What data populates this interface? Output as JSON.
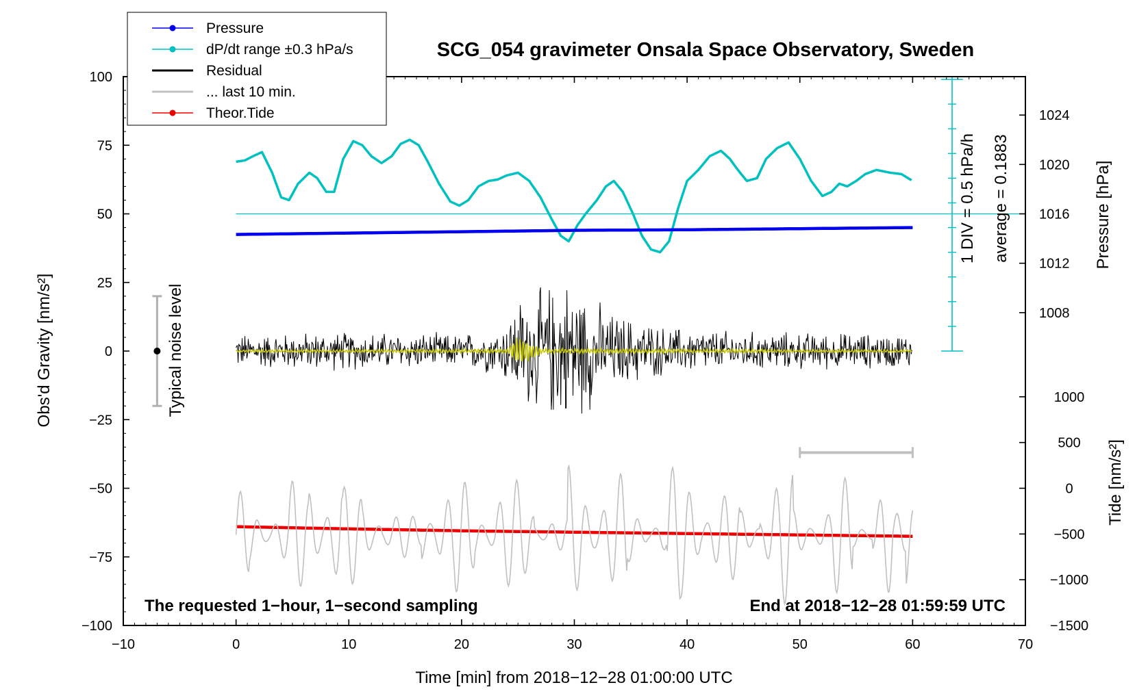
{
  "chart_data": {
    "type": "line",
    "title": "SCG_054 gravimeter Onsala Space Observatory, Sweden",
    "xlabel": "Time [min] from 2018−12−28 01:00:00 UTC",
    "ylabel_left": "Obs'd Gravity [nm/s²]",
    "ylabel_right_top": "Pressure [hPa]",
    "ylabel_right_bottom": "Tide [nm/s²]",
    "xlim": [
      -10,
      70
    ],
    "ylim_left": [
      -100,
      100
    ],
    "x_ticks": [
      "−10",
      "0",
      "10",
      "20",
      "30",
      "40",
      "50",
      "60",
      "70"
    ],
    "left_ticks": [
      "100",
      "75",
      "50",
      "25",
      "0",
      "−25",
      "−50",
      "−75",
      "−100"
    ],
    "pressure_ticks": [
      "1024",
      "1020",
      "1016",
      "1012",
      "1008"
    ],
    "tide_ticks": [
      "1000",
      "500",
      "0",
      "−500",
      "−1000",
      "−1500"
    ],
    "legend": [
      {
        "label": "Pressure",
        "color": "#0000ee",
        "marker": true
      },
      {
        "label": "dP/dt range ±0.3 hPa/s",
        "color": "#00c0c0",
        "marker": true
      },
      {
        "label": "Residual",
        "color": "#000000",
        "marker": false
      },
      {
        "label": "... last 10 min.",
        "color": "#c0c0c0",
        "marker": false
      },
      {
        "label": "Theor.Tide",
        "color": "#ee0000",
        "marker": true
      }
    ],
    "annotations": {
      "div_label": "1 DIV = 0.5 hPa/h",
      "average_label": "average = 0.1883",
      "noise_label": "Typical noise level",
      "bottom_left": "The requested 1−hour, 1−second sampling",
      "bottom_right": "End at 2018−12−28 01:59:59 UTC"
    },
    "series": [
      {
        "name": "Pressure",
        "color": "#0000ee",
        "unit": "left-axis",
        "x": [
          0,
          10,
          20,
          30,
          40,
          50,
          60
        ],
        "values": [
          42.5,
          43.0,
          43.5,
          44.0,
          44.2,
          44.6,
          45.0
        ]
      },
      {
        "name": "dP/dt",
        "color": "#00c0c0",
        "unit": "left-axis",
        "x": [
          0,
          0.8,
          1.5,
          2.3,
          3.2,
          4.0,
          4.7,
          5.5,
          6.5,
          7.2,
          8.0,
          8.7,
          9.5,
          10.4,
          11.2,
          12.0,
          12.9,
          13.8,
          14.6,
          15.4,
          16.2,
          17.0,
          18.0,
          19.0,
          19.8,
          20.6,
          21.5,
          22.4,
          23.2,
          24.0,
          25.0,
          26.0,
          27.0,
          28.0,
          28.8,
          29.5,
          30.3,
          31.0,
          32.0,
          32.8,
          33.5,
          34.3,
          35.2,
          36.0,
          36.8,
          37.6,
          38.4,
          39.2,
          40.0,
          41.0,
          42.0,
          43.0,
          43.8,
          44.5,
          45.3,
          46.2,
          47.0,
          48.0,
          49.0,
          50.0,
          51.0,
          52.0,
          52.8,
          53.5,
          54.2,
          55.0,
          55.8,
          56.8,
          58.0,
          59.0,
          60.0
        ],
        "values": [
          69,
          69.5,
          71,
          72.5,
          65,
          56,
          55,
          61,
          65,
          63,
          58,
          58,
          70,
          76.5,
          75,
          71,
          68.5,
          71,
          75.5,
          77,
          75,
          69,
          61,
          54.5,
          53,
          55,
          60,
          62,
          62.5,
          64,
          65,
          62,
          56,
          48,
          42,
          40,
          46,
          50,
          55,
          60,
          62,
          58,
          50,
          42,
          37,
          36,
          40,
          52,
          62,
          66,
          71,
          73,
          70,
          66,
          62,
          63,
          70,
          74,
          76,
          70,
          62,
          56.5,
          58,
          61,
          60,
          62,
          64.5,
          66,
          65,
          64.5,
          62
        ]
      },
      {
        "name": "Residual",
        "color": "#000000",
        "unit": "left-axis",
        "x": [
          0,
          10,
          20,
          23.5,
          25,
          26.5,
          28,
          29.5,
          31,
          33,
          35,
          38,
          45,
          60
        ],
        "envelope": [
          7,
          8,
          7,
          10,
          22,
          24,
          28,
          30,
          26,
          16,
          14,
          10,
          8,
          7
        ]
      },
      {
        "name": "Residual smoothed",
        "color": "#c8c800",
        "unit": "left-axis",
        "x": [
          0,
          24,
          25,
          26,
          27,
          60
        ],
        "envelope": [
          0.5,
          0.8,
          6,
          4,
          1,
          0.5
        ]
      },
      {
        "name": "... last 10 min.",
        "color": "#c0c0c0",
        "unit": "left-axis",
        "x_range": [
          0,
          60
        ],
        "center": -67,
        "amplitude_range": [
          6,
          27
        ]
      },
      {
        "name": "Theor.Tide",
        "color": "#ee0000",
        "unit": "left-axis",
        "x": [
          0,
          10,
          20,
          30,
          40,
          50,
          60
        ],
        "values": [
          -64,
          -64.8,
          -65.5,
          -66.0,
          -66.5,
          -67.0,
          -67.5
        ]
      }
    ],
    "scale_bar_x": [
      50,
      60
    ],
    "noise_bar": {
      "x": -7,
      "range": [
        -20,
        20
      ]
    },
    "reference_line_y": 50
  }
}
